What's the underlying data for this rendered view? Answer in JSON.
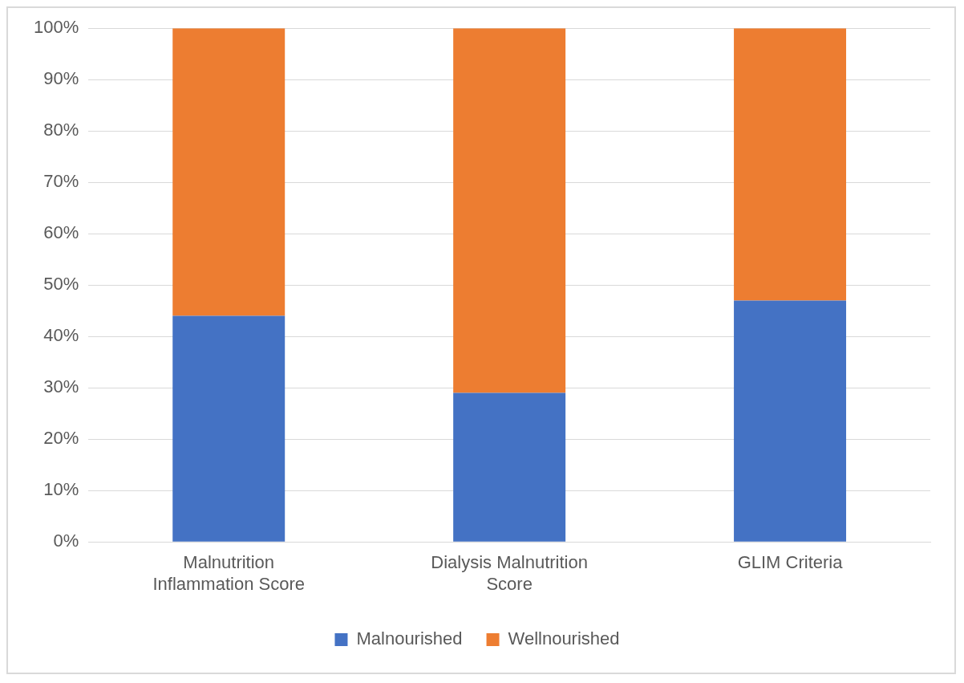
{
  "chart_data": {
    "type": "bar",
    "stacked": true,
    "categories": [
      "Malnutrition Inflammation Score",
      "Dialysis Malnutrition Score",
      "GLIM Criteria"
    ],
    "series": [
      {
        "name": "Malnourished",
        "color": "#4472c4",
        "values": [
          44,
          29,
          47
        ]
      },
      {
        "name": "Wellnourished",
        "color": "#ed7d31",
        "values": [
          56,
          71,
          53
        ]
      }
    ],
    "ylim": [
      0,
      100
    ],
    "yticks": [
      {
        "value": 0,
        "label": "0%"
      },
      {
        "value": 10,
        "label": "10%"
      },
      {
        "value": 20,
        "label": "20%"
      },
      {
        "value": 30,
        "label": "30%"
      },
      {
        "value": 40,
        "label": "40%"
      },
      {
        "value": 50,
        "label": "50%"
      },
      {
        "value": 60,
        "label": "60%"
      },
      {
        "value": 70,
        "label": "70%"
      },
      {
        "value": 80,
        "label": "80%"
      },
      {
        "value": 90,
        "label": "90%"
      },
      {
        "value": 100,
        "label": "100%"
      }
    ],
    "grid": "y",
    "legend": "bottom"
  }
}
